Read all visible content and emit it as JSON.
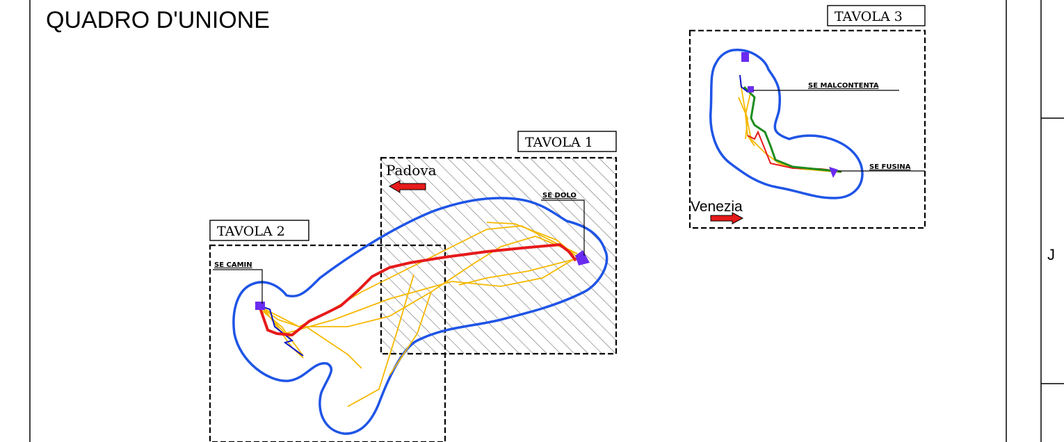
{
  "title": "QUADRO D'UNIONE",
  "sheets": [
    {
      "label": "TAVOLA 1"
    },
    {
      "label": "TAVOLA 2"
    },
    {
      "label": "TAVOLA 3"
    }
  ],
  "stations": {
    "camin": "SE CAMIN",
    "dolo": "SE DOLO",
    "malcontenta": "SE MALCONTENTA",
    "fusina": "SE FUSINA"
  },
  "cities": {
    "padova": "Padova",
    "venezia": "Venezia"
  },
  "side_mark": "J",
  "colors": {
    "buffer": "#1f55e6",
    "route_red": "#e61a1a",
    "route_yellow": "#f5b800",
    "route_green": "#1e8c1e",
    "route_blue": "#0a14c8",
    "station": "#6a2cf0",
    "arrow": "#e61a1a"
  }
}
